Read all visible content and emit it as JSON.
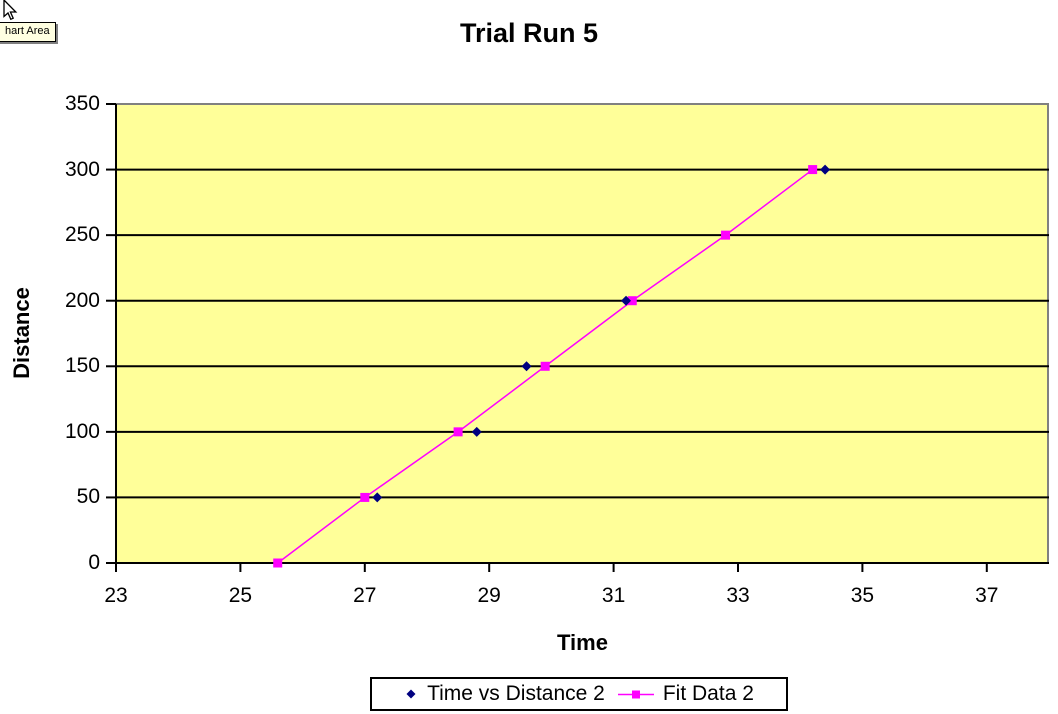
{
  "tooltip": {
    "text": "hart Area"
  },
  "colors": {
    "canvas_bg": "#ffffff",
    "plot_bg": "#ffff99",
    "plot_border": "#808080",
    "gridline": "#000000",
    "axis": "#000000",
    "series1": "#000080",
    "series2": "#ff00ff",
    "legend_border": "#000000",
    "legend_bg": "#ffffff",
    "tooltip_bg": "#ffffe1"
  },
  "chart_data": {
    "type": "scatter",
    "title": "Trial Run 5",
    "xlabel": "Time",
    "ylabel": "Distance",
    "xlim": [
      23,
      38
    ],
    "ylim": [
      0,
      350
    ],
    "x_ticks": [
      23,
      25,
      27,
      29,
      31,
      33,
      35,
      37
    ],
    "y_ticks": [
      0,
      50,
      100,
      150,
      200,
      250,
      300,
      350
    ],
    "grid": "horizontal-major",
    "legend_position": "bottom",
    "series": [
      {
        "name": "Time vs Distance 2",
        "style": "scatter",
        "marker": "diamond",
        "color": "#000080",
        "points": [
          [
            27.2,
            50
          ],
          [
            28.8,
            100
          ],
          [
            29.6,
            150
          ],
          [
            31.2,
            200
          ],
          [
            34.4,
            300
          ]
        ]
      },
      {
        "name": "Fit Data 2",
        "style": "line-with-markers",
        "marker": "square",
        "color": "#ff00ff",
        "points": [
          [
            25.6,
            0
          ],
          [
            27.0,
            50
          ],
          [
            28.5,
            100
          ],
          [
            29.9,
            150
          ],
          [
            31.3,
            200
          ],
          [
            32.8,
            250
          ],
          [
            34.2,
            300
          ]
        ]
      }
    ]
  }
}
